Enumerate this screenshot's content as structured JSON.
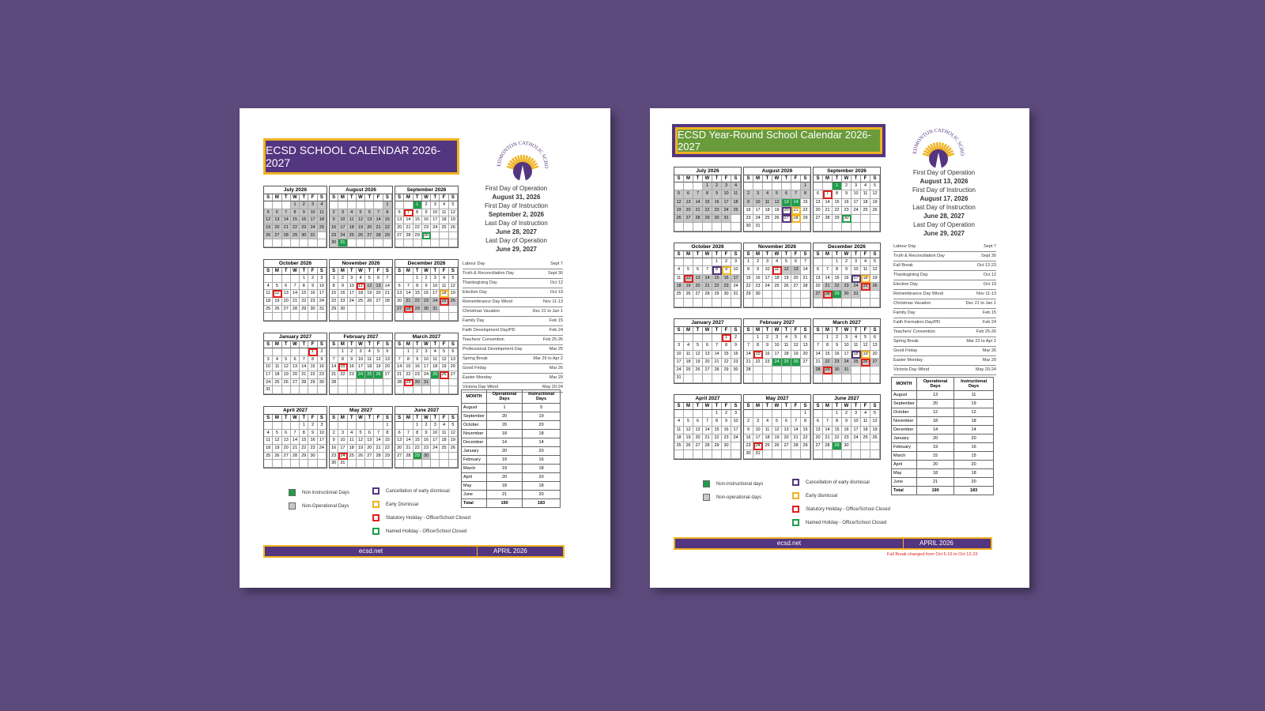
{
  "logo_text": "EDMONTON CATHOLIC SCHOOLS",
  "weekdays": [
    "S",
    "M",
    "T",
    "W",
    "T",
    "F",
    "S"
  ],
  "calendar_months": [
    {
      "name": "July 2026",
      "cells": [
        null,
        null,
        null,
        1,
        2,
        3,
        4,
        5,
        6,
        7,
        8,
        9,
        10,
        11,
        12,
        13,
        14,
        15,
        16,
        17,
        18,
        19,
        20,
        21,
        22,
        23,
        24,
        25,
        26,
        27,
        28,
        29,
        30,
        31
      ]
    },
    {
      "name": "August 2026",
      "cells": [
        null,
        null,
        null,
        null,
        null,
        null,
        1,
        2,
        3,
        4,
        5,
        6,
        7,
        8,
        9,
        10,
        11,
        12,
        13,
        14,
        15,
        16,
        17,
        18,
        19,
        20,
        21,
        22,
        23,
        24,
        25,
        26,
        27,
        28,
        29,
        30,
        31
      ]
    },
    {
      "name": "September 2026",
      "cells": [
        null,
        null,
        1,
        2,
        3,
        4,
        5,
        6,
        7,
        8,
        9,
        10,
        11,
        12,
        13,
        14,
        15,
        16,
        17,
        18,
        19,
        20,
        21,
        22,
        23,
        24,
        25,
        26,
        27,
        28,
        29,
        30
      ]
    },
    {
      "name": "October 2026",
      "cells": [
        null,
        null,
        null,
        null,
        1,
        2,
        3,
        4,
        5,
        6,
        7,
        8,
        9,
        10,
        11,
        12,
        13,
        14,
        15,
        16,
        17,
        18,
        19,
        20,
        21,
        22,
        23,
        24,
        25,
        26,
        27,
        28,
        29,
        30,
        31
      ]
    },
    {
      "name": "November 2026",
      "cells": [
        1,
        2,
        3,
        4,
        5,
        6,
        7,
        8,
        9,
        10,
        11,
        12,
        13,
        14,
        15,
        16,
        17,
        18,
        19,
        20,
        21,
        22,
        23,
        24,
        25,
        26,
        27,
        28,
        29,
        30
      ]
    },
    {
      "name": "December 2026",
      "cells": [
        null,
        null,
        1,
        2,
        3,
        4,
        5,
        6,
        7,
        8,
        9,
        10,
        11,
        12,
        13,
        14,
        15,
        16,
        17,
        18,
        19,
        20,
        21,
        22,
        23,
        24,
        25,
        26,
        27,
        28,
        29,
        30,
        31
      ]
    },
    {
      "name": "January 2027",
      "cells": [
        null,
        null,
        null,
        null,
        null,
        1,
        2,
        3,
        4,
        5,
        6,
        7,
        8,
        9,
        10,
        11,
        12,
        13,
        14,
        15,
        16,
        17,
        18,
        19,
        20,
        21,
        22,
        23,
        24,
        25,
        26,
        27,
        28,
        29,
        30,
        31
      ]
    },
    {
      "name": "February 2027",
      "cells": [
        null,
        1,
        2,
        3,
        4,
        5,
        6,
        7,
        8,
        9,
        10,
        11,
        12,
        13,
        14,
        15,
        16,
        17,
        18,
        19,
        20,
        21,
        22,
        23,
        24,
        25,
        26,
        27,
        28
      ]
    },
    {
      "name": "March 2027",
      "cells": [
        null,
        1,
        2,
        3,
        4,
        5,
        6,
        7,
        8,
        9,
        10,
        11,
        12,
        13,
        14,
        15,
        16,
        17,
        18,
        19,
        20,
        21,
        22,
        23,
        24,
        25,
        26,
        27,
        28,
        29,
        30,
        31
      ]
    },
    {
      "name": "April 2027",
      "cells": [
        null,
        null,
        null,
        null,
        1,
        2,
        3,
        4,
        5,
        6,
        7,
        8,
        9,
        10,
        11,
        12,
        13,
        14,
        15,
        16,
        17,
        18,
        19,
        20,
        21,
        22,
        23,
        24,
        25,
        26,
        27,
        28,
        29,
        30
      ]
    },
    {
      "name": "May 2027",
      "cells": [
        null,
        null,
        null,
        null,
        null,
        null,
        1,
        2,
        3,
        4,
        5,
        6,
        7,
        8,
        9,
        10,
        11,
        12,
        13,
        14,
        15,
        16,
        17,
        18,
        19,
        20,
        21,
        22,
        23,
        24,
        25,
        26,
        27,
        28,
        29,
        30,
        31
      ]
    },
    {
      "name": "June 2027",
      "cells": [
        null,
        null,
        1,
        2,
        3,
        4,
        5,
        6,
        7,
        8,
        9,
        10,
        11,
        12,
        13,
        14,
        15,
        16,
        17,
        18,
        19,
        20,
        21,
        22,
        23,
        24,
        25,
        26,
        27,
        28,
        29,
        30
      ]
    }
  ],
  "documents": [
    {
      "title": "ECSD SCHOOL CALENDAR 2026-2027",
      "key_dates": [
        "First Day of Operation",
        "August 31, 2026",
        "First Day of Instruction",
        "September 2, 2026",
        "Last Day of Instruction",
        "June 28, 2027",
        "Last Day of Operation",
        "June 29, 2027"
      ],
      "holidays": [
        [
          "Labour Day",
          "Sept 7"
        ],
        [
          "Truth & Reconciliation Day",
          "Sept 30"
        ],
        [
          "Thanksgiving Day",
          "Oct 12"
        ],
        [
          "Election Day",
          "Oct 19"
        ],
        [
          "Remembrance Day Wknd",
          "Nov 11-13"
        ],
        [
          "Christmas Vacation",
          "Dec 21 to Jan 1"
        ],
        [
          "Family Day",
          "Feb 15"
        ],
        [
          "Faith Development Day/PD",
          "Feb 24"
        ],
        [
          "Teachers' Convention",
          "Feb 25-26"
        ],
        [
          "Professional Development Day",
          "Mar 25"
        ],
        [
          "Spring Break",
          "Mar 26 to Apr 2"
        ],
        [
          "Good Friday",
          "Mar 26"
        ],
        [
          "Easter Monday",
          "Mar 29"
        ],
        [
          "Victoria Day Wknd",
          "May 20-24"
        ]
      ],
      "table": {
        "header": [
          "MONTH",
          "Operational Days",
          "Instructional Days"
        ],
        "rows": [
          [
            "August",
            1,
            0
          ],
          [
            "September",
            20,
            19
          ],
          [
            "October",
            20,
            20
          ],
          [
            "November",
            18,
            18
          ],
          [
            "December",
            14,
            14
          ],
          [
            "January",
            20,
            20
          ],
          [
            "February",
            19,
            16
          ],
          [
            "March",
            19,
            18
          ],
          [
            "April",
            20,
            20
          ],
          [
            "May",
            18,
            18
          ],
          [
            "June",
            21,
            20
          ],
          [
            "Total",
            190,
            183
          ]
        ]
      },
      "legend": [
        {
          "label": "Non instructional Days",
          "kind": "green"
        },
        {
          "label": "Non-Operational Days",
          "kind": "grey"
        },
        {
          "label": "Cancellation of early dismissal",
          "kind": "purple"
        },
        {
          "label": "Early Dismissal",
          "kind": "orange"
        },
        {
          "label": "Statutory Holiday - Office/School Closed",
          "kind": "red"
        },
        {
          "label": "Named Holiday - Office/School Closed",
          "kind": "greenbox"
        }
      ],
      "footer": [
        "ecsd.net",
        "APRIL 2026"
      ],
      "highlights": [
        {
          "month": 0,
          "from": 1,
          "to": 31,
          "kind": "grey"
        },
        {
          "month": 1,
          "from": 1,
          "to": 30,
          "kind": "grey"
        },
        {
          "month": 1,
          "from": 31,
          "to": 31,
          "kind": "green"
        },
        {
          "month": 2,
          "from": 1,
          "to": 1,
          "kind": "green"
        },
        {
          "month": 2,
          "from": 7,
          "to": 7,
          "kind": "red"
        },
        {
          "month": 2,
          "from": 30,
          "to": 30,
          "kind": "greenbox"
        },
        {
          "month": 3,
          "from": 12,
          "to": 12,
          "kind": "red"
        },
        {
          "month": 4,
          "from": 12,
          "to": 13,
          "kind": "grey"
        },
        {
          "month": 4,
          "from": 11,
          "to": 11,
          "kind": "red"
        },
        {
          "month": 5,
          "from": 21,
          "to": 31,
          "kind": "grey"
        },
        {
          "month": 5,
          "from": 18,
          "to": 18,
          "kind": "orange"
        },
        {
          "month": 5,
          "from": 25,
          "to": 25,
          "kind": "red"
        },
        {
          "month": 5,
          "from": 28,
          "to": 28,
          "kind": "red"
        },
        {
          "month": 6,
          "from": 1,
          "to": 1,
          "kind": "red"
        },
        {
          "month": 7,
          "from": 15,
          "to": 15,
          "kind": "red"
        },
        {
          "month": 7,
          "from": 24,
          "to": 26,
          "kind": "green"
        },
        {
          "month": 8,
          "from": 25,
          "to": 25,
          "kind": "green"
        },
        {
          "month": 8,
          "from": 30,
          "to": 31,
          "kind": "grey"
        },
        {
          "month": 8,
          "from": 26,
          "to": 26,
          "kind": "red"
        },
        {
          "month": 8,
          "from": 29,
          "to": 29,
          "kind": "red"
        },
        {
          "month": 10,
          "from": 24,
          "to": 24,
          "kind": "red"
        },
        {
          "month": 11,
          "from": 29,
          "to": 29,
          "kind": "green"
        },
        {
          "month": 11,
          "from": 30,
          "to": 30,
          "kind": "grey"
        }
      ]
    },
    {
      "title": "ECSD Year-Round School Calendar 2026-2027",
      "key_dates": [
        "First Day of Operation",
        "August 13, 2026",
        "First Day of Instruction",
        "August 17, 2026",
        "Last Day of Instruction",
        "June 28, 2027",
        "Last Day of Operation",
        "June 29, 2027"
      ],
      "holidays": [
        [
          "Labour Day",
          "Sept 7"
        ],
        [
          "Truth & Reconciliation Day",
          "Sept 30"
        ],
        [
          "Fall Break",
          "Oct 12-23"
        ],
        [
          "Thanksgiving Day",
          "Oct 12"
        ],
        [
          "Election Day",
          "Oct 19"
        ],
        [
          "Remembrance Day Wknd",
          "Nov 11-13"
        ],
        [
          "Christmas Vacation",
          "Dec 21 to Jan 1"
        ],
        [
          "Family Day",
          "Feb 15"
        ],
        [
          "Faith Formation Day/PD",
          "Feb 24"
        ],
        [
          "Teachers' Convention",
          "Feb 25-26"
        ],
        [
          "Spring Break",
          "Mar 22 to Apr 2"
        ],
        [
          "Good Friday",
          "Mar 26"
        ],
        [
          "Easter Monday",
          "Mar 29"
        ],
        [
          "Victoria Day Wknd",
          "May 20-24"
        ]
      ],
      "table": {
        "header": [
          "MONTH",
          "Operational Days",
          "Instructional Days"
        ],
        "rows": [
          [
            "August",
            13,
            11
          ],
          [
            "September",
            20,
            19
          ],
          [
            "October",
            12,
            12
          ],
          [
            "November",
            18,
            18
          ],
          [
            "December",
            14,
            14
          ],
          [
            "January",
            20,
            20
          ],
          [
            "February",
            19,
            16
          ],
          [
            "March",
            15,
            15
          ],
          [
            "April",
            20,
            20
          ],
          [
            "May",
            18,
            18
          ],
          [
            "June",
            21,
            20
          ],
          [
            "Total",
            190,
            183
          ]
        ]
      },
      "legend": [
        {
          "label": "Non-instructional days",
          "kind": "green"
        },
        {
          "label": "Non-operational days",
          "kind": "grey"
        },
        {
          "label": "Cancellation of early dismissal",
          "kind": "purple"
        },
        {
          "label": "Early dismissal",
          "kind": "orange"
        },
        {
          "label": "Statutory Holiday - Office/School Closed",
          "kind": "red"
        },
        {
          "label": "Named Holiday - Office/School Closed",
          "kind": "greenbox"
        }
      ],
      "footer": [
        "ecsd.net",
        "APRIL 2026"
      ],
      "note": "Fall Break changed from Oct 5-16 to Oct 12-23",
      "highlights": [
        {
          "month": 0,
          "from": 1,
          "to": 31,
          "kind": "grey"
        },
        {
          "month": 1,
          "from": 1,
          "to": 12,
          "kind": "grey"
        },
        {
          "month": 1,
          "from": 13,
          "to": 14,
          "kind": "green"
        },
        {
          "month": 1,
          "from": 20,
          "to": 20,
          "kind": "purple"
        },
        {
          "month": 1,
          "from": 21,
          "to": 21,
          "kind": "orange"
        },
        {
          "month": 1,
          "from": 27,
          "to": 27,
          "kind": "purple"
        },
        {
          "month": 1,
          "from": 28,
          "to": 28,
          "kind": "orange"
        },
        {
          "month": 2,
          "from": 1,
          "to": 1,
          "kind": "green"
        },
        {
          "month": 2,
          "from": 7,
          "to": 7,
          "kind": "red"
        },
        {
          "month": 2,
          "from": 30,
          "to": 30,
          "kind": "greenbox"
        },
        {
          "month": 3,
          "from": 12,
          "to": 23,
          "kind": "grey"
        },
        {
          "month": 3,
          "from": 8,
          "to": 8,
          "kind": "purple"
        },
        {
          "month": 3,
          "from": 9,
          "to": 9,
          "kind": "orange"
        },
        {
          "month": 3,
          "from": 12,
          "to": 12,
          "kind": "red"
        },
        {
          "month": 4,
          "from": 12,
          "to": 13,
          "kind": "grey"
        },
        {
          "month": 4,
          "from": 11,
          "to": 11,
          "kind": "red"
        },
        {
          "month": 5,
          "from": 21,
          "to": 31,
          "kind": "grey"
        },
        {
          "month": 5,
          "from": 17,
          "to": 17,
          "kind": "purple"
        },
        {
          "month": 5,
          "from": 18,
          "to": 18,
          "kind": "orange"
        },
        {
          "month": 5,
          "from": 25,
          "to": 25,
          "kind": "red"
        },
        {
          "month": 5,
          "from": 28,
          "to": 28,
          "kind": "red"
        },
        {
          "month": 5,
          "from": 29,
          "to": 29,
          "kind": "green"
        },
        {
          "month": 6,
          "from": 1,
          "to": 1,
          "kind": "red"
        },
        {
          "month": 7,
          "from": 15,
          "to": 15,
          "kind": "red"
        },
        {
          "month": 7,
          "from": 24,
          "to": 26,
          "kind": "green"
        },
        {
          "month": 8,
          "from": 22,
          "to": 31,
          "kind": "grey"
        },
        {
          "month": 8,
          "from": 18,
          "to": 18,
          "kind": "purple"
        },
        {
          "month": 8,
          "from": 19,
          "to": 19,
          "kind": "orange"
        },
        {
          "month": 8,
          "from": 26,
          "to": 26,
          "kind": "red"
        },
        {
          "month": 8,
          "from": 29,
          "to": 29,
          "kind": "red"
        },
        {
          "month": 10,
          "from": 24,
          "to": 24,
          "kind": "red"
        },
        {
          "month": 11,
          "from": 29,
          "to": 29,
          "kind": "green"
        }
      ]
    }
  ]
}
